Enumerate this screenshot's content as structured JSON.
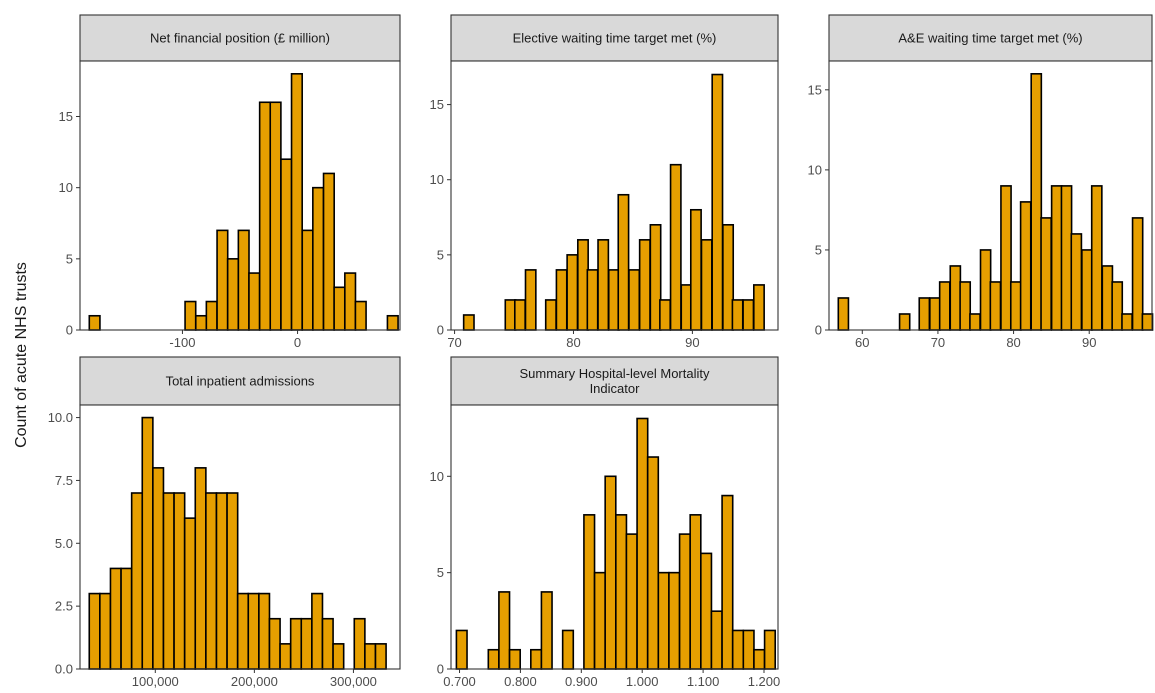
{
  "chart_data": {
    "type": "bar",
    "ylabel": "Count of acute NHS trusts",
    "colors": {
      "bar_fill": "#E69F00",
      "bar_stroke": "#000000",
      "strip_fill": "#D9D9D9"
    },
    "facets": [
      {
        "id": "net-financial-position",
        "title_lines": [
          "Net financial position (£ million)"
        ],
        "xlim": [
          -189,
          89
        ],
        "ylim": [
          0,
          18.9
        ],
        "x_ticks": [
          -100,
          0
        ],
        "x_tick_labels": [
          "-100",
          "0"
        ],
        "y_ticks": [
          0,
          5,
          10,
          15
        ],
        "y_tick_labels": [
          "0",
          "5",
          "10",
          "15"
        ],
        "bin_width": 9.25,
        "bin_centers": [
          -176.3,
          -167.1,
          -157.8,
          -148.6,
          -139.3,
          -130.1,
          -120.8,
          -111.6,
          -102.3,
          -93.1,
          -83.8,
          -74.6,
          -65.3,
          -56.1,
          -46.8,
          -37.6,
          -28.3,
          -19.1,
          -9.8,
          -0.6,
          8.7,
          17.9,
          27.2,
          36.4,
          45.7,
          54.9,
          64.2,
          73.4,
          82.7
        ],
        "counts": [
          1,
          0,
          0,
          0,
          0,
          0,
          0,
          0,
          0,
          2,
          1,
          2,
          7,
          5,
          7,
          4,
          16,
          16,
          12,
          18,
          7,
          10,
          11,
          3,
          4,
          2,
          0,
          0,
          1
        ]
      },
      {
        "id": "elective-waiting-time",
        "title_lines": [
          "Elective waiting time target met (%)"
        ],
        "xlim": [
          69.7,
          97.2
        ],
        "ylim": [
          0,
          17.9
        ],
        "x_ticks": [
          70,
          80,
          90
        ],
        "x_tick_labels": [
          "70",
          "80",
          "90"
        ],
        "y_ticks": [
          0,
          5,
          10,
          15
        ],
        "y_tick_labels": [
          "0",
          "5",
          "10",
          "15"
        ],
        "bin_width": 0.87,
        "bin_centers": [
          71.2,
          72.0,
          72.9,
          73.8,
          74.7,
          75.5,
          76.4,
          77.3,
          78.1,
          79.0,
          79.9,
          80.8,
          81.6,
          82.5,
          83.4,
          84.2,
          85.1,
          86.0,
          86.9,
          87.7,
          88.6,
          89.5,
          90.3,
          91.2,
          92.1,
          93.0,
          93.8,
          94.7,
          95.6
        ],
        "counts": [
          1,
          0,
          0,
          0,
          2,
          2,
          4,
          0,
          2,
          4,
          5,
          6,
          4,
          6,
          4,
          9,
          4,
          6,
          7,
          2,
          11,
          3,
          8,
          6,
          17,
          7,
          2,
          2,
          3
        ]
      },
      {
        "id": "ae-waiting-time",
        "title_lines": [
          "A&E waiting time target met (%)"
        ],
        "xlim": [
          55.6,
          98.3
        ],
        "ylim": [
          0,
          16.8
        ],
        "x_ticks": [
          60,
          70,
          80,
          90
        ],
        "x_tick_labels": [
          "60",
          "70",
          "80",
          "90"
        ],
        "y_ticks": [
          0,
          5,
          10,
          15
        ],
        "y_tick_labels": [
          "0",
          "5",
          "10",
          "15"
        ],
        "bin_width": 1.34,
        "bin_centers": [
          57.5,
          58.9,
          60.2,
          61.5,
          62.9,
          64.2,
          65.6,
          66.9,
          68.2,
          69.6,
          70.9,
          72.3,
          73.6,
          74.9,
          76.3,
          77.6,
          79.0,
          80.3,
          81.6,
          83.0,
          84.3,
          85.7,
          87.0,
          88.3,
          89.7,
          91.0,
          92.4,
          93.7,
          95.0,
          96.4,
          97.7
        ],
        "counts": [
          2,
          0,
          0,
          0,
          0,
          0,
          1,
          0,
          2,
          2,
          3,
          4,
          3,
          1,
          5,
          3,
          9,
          3,
          8,
          16,
          7,
          9,
          9,
          6,
          5,
          9,
          4,
          3,
          1,
          7,
          1
        ]
      },
      {
        "id": "total-inpatient-admissions",
        "title_lines": [
          "Total inpatient admissions"
        ],
        "xlim": [
          24000,
          347000
        ],
        "ylim": [
          0,
          10.5
        ],
        "x_ticks": [
          100000,
          200000,
          300000
        ],
        "x_tick_labels": [
          "100,000",
          "200,000",
          "300,000"
        ],
        "y_ticks": [
          0,
          2.5,
          5,
          7.5,
          10
        ],
        "y_tick_labels": [
          "0.0",
          "2.5",
          "5.0",
          "7.5",
          "10.0"
        ],
        "bin_width": 10700,
        "bin_centers": [
          38700,
          49400,
          60100,
          70800,
          81500,
          92200,
          102900,
          113600,
          124300,
          135000,
          145700,
          156400,
          167100,
          177800,
          188500,
          199200,
          209900,
          220600,
          231300,
          242000,
          252700,
          263400,
          274100,
          284800,
          295500,
          306200,
          316900,
          327600,
          338300
        ],
        "counts": [
          3,
          3,
          4,
          4,
          7,
          10,
          8,
          7,
          7,
          6,
          8,
          7,
          7,
          7,
          3,
          3,
          3,
          2,
          1,
          2,
          2,
          3,
          2,
          1,
          0,
          2,
          1,
          1,
          0
        ]
      },
      {
        "id": "shmi",
        "title_lines": [
          "Summary Hospital-level Mortality",
          "Indicator"
        ],
        "xlim": [
          0.686,
          1.223
        ],
        "ylim": [
          0,
          13.7
        ],
        "x_ticks": [
          0.7,
          0.8,
          0.9,
          1.0,
          1.1,
          1.2
        ],
        "x_tick_labels": [
          "0.700",
          "0.800",
          "0.900",
          "1.000",
          "1.100",
          "1.200"
        ],
        "y_ticks": [
          0,
          5,
          10
        ],
        "y_tick_labels": [
          "0",
          "5",
          "10"
        ],
        "bin_width": 0.01745,
        "bin_centers": [
          0.7036,
          0.7211,
          0.7385,
          0.756,
          0.7734,
          0.7909,
          0.8083,
          0.8258,
          0.8432,
          0.8607,
          0.8781,
          0.8956,
          0.913,
          0.9305,
          0.9479,
          0.9654,
          0.9828,
          1.0003,
          1.0177,
          1.0352,
          1.0526,
          1.0701,
          1.0875,
          1.105,
          1.1224,
          1.1399,
          1.1573,
          1.1748,
          1.1922,
          1.2097
        ],
        "counts": [
          2,
          0,
          0,
          1,
          4,
          1,
          0,
          1,
          4,
          0,
          2,
          0,
          8,
          5,
          10,
          8,
          7,
          13,
          11,
          5,
          5,
          7,
          8,
          6,
          3,
          9,
          2,
          2,
          1,
          2
        ]
      }
    ]
  }
}
